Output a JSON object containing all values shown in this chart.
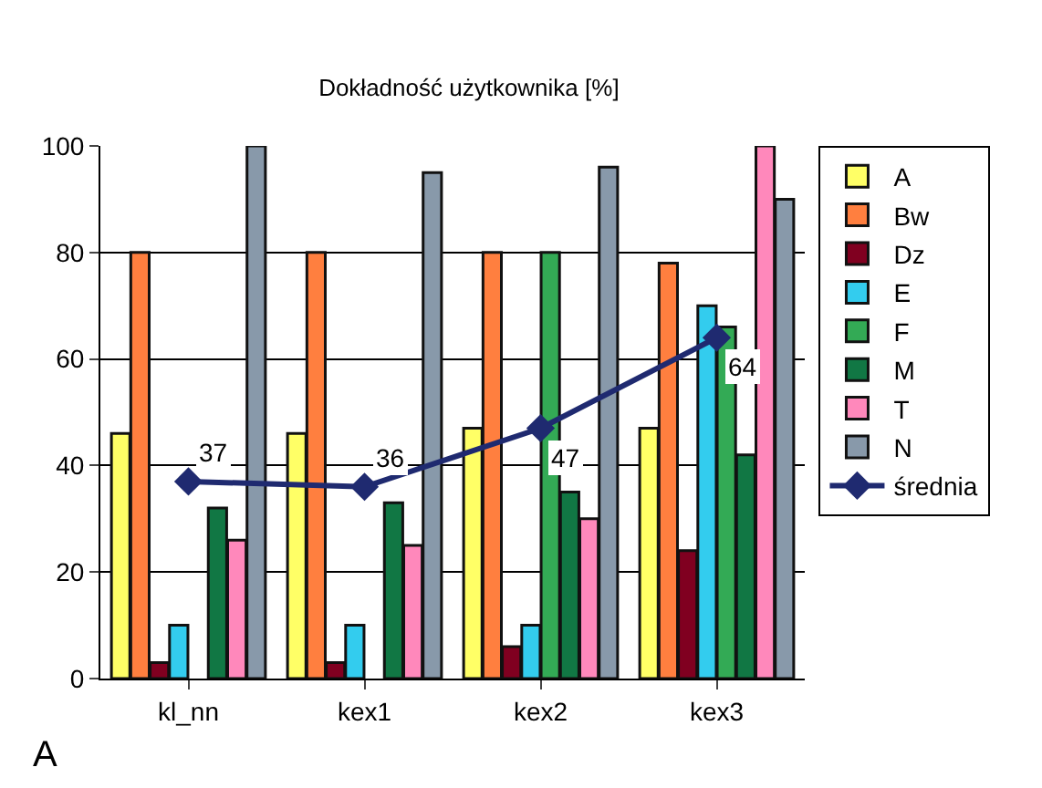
{
  "chart_data": {
    "type": "bar",
    "title": "Dokładność użytkownika [%]",
    "categories": [
      "kl_nn",
      "kex1",
      "kex2",
      "kex3"
    ],
    "series": [
      {
        "name": "A",
        "color": "#ffff66",
        "values": [
          46,
          46,
          47,
          47
        ]
      },
      {
        "name": "Bw",
        "color": "#ff7f3f",
        "values": [
          80,
          80,
          80,
          78
        ]
      },
      {
        "name": "Dz",
        "color": "#800020",
        "values": [
          3,
          3,
          6,
          24
        ]
      },
      {
        "name": "E",
        "color": "#33ccee",
        "values": [
          10,
          10,
          10,
          70
        ]
      },
      {
        "name": "F",
        "color": "#33aa55",
        "values": [
          null,
          null,
          80,
          66
        ]
      },
      {
        "name": "M",
        "color": "#117744",
        "values": [
          32,
          33,
          35,
          42
        ]
      },
      {
        "name": "T",
        "color": "#ff88bb",
        "values": [
          26,
          25,
          30,
          100
        ]
      },
      {
        "name": "N",
        "color": "#8899aa",
        "values": [
          100,
          95,
          96,
          90
        ]
      },
      {
        "name": "średnia",
        "type": "line",
        "color": "#1f2a70",
        "marker": "diamond",
        "values": [
          37,
          36,
          47,
          64
        ],
        "value_labels": [
          "37",
          "36",
          "47",
          "64"
        ]
      }
    ],
    "ylim": [
      0,
      100
    ],
    "yticks": [
      0,
      20,
      40,
      60,
      80,
      100
    ],
    "grid": "y",
    "legend": "right",
    "annotations": [
      "A"
    ]
  }
}
